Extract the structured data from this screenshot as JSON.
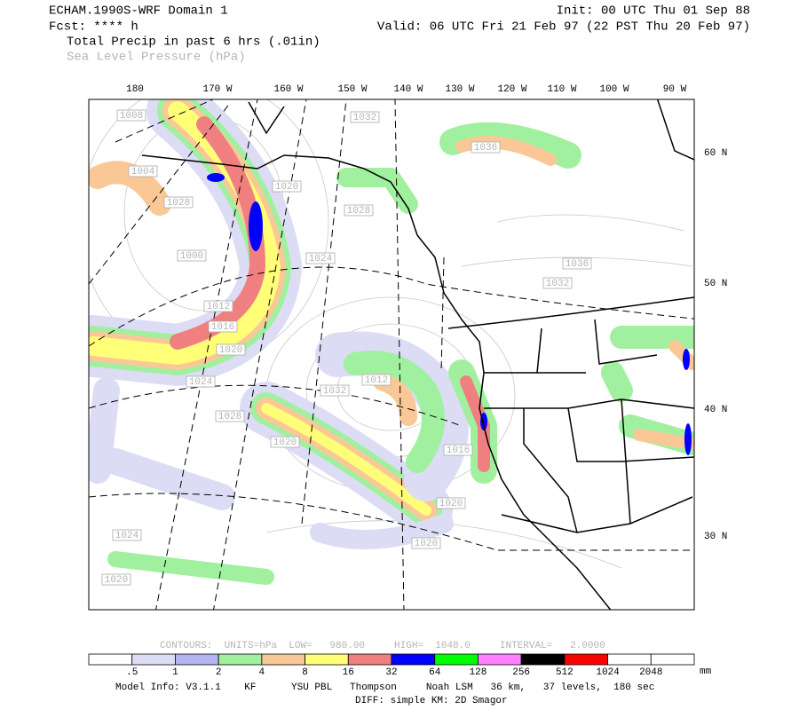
{
  "header": {
    "model": "ECHAM.1990S-WRF Domain 1",
    "forecast": "Fcst: **** h",
    "init": "Init: 00 UTC Thu 01 Sep 88",
    "valid": "Valid: 06 UTC Fri 21 Feb 97 (22 PST Thu 20 Feb 97)",
    "field1": "Total Precip in past 6 hrs (.01in)",
    "field2": "Sea Level Pressure (hPa)"
  },
  "map": {
    "longitude_labels": [
      "180",
      "170 W",
      "160 W",
      "150 W",
      "140 W",
      "130 W",
      "120 W",
      "110 W",
      "100 W",
      "90 W"
    ],
    "latitude_labels": [
      "60 N",
      "50 N",
      "40 N",
      "30 N"
    ],
    "pressure_labels": [
      "1008",
      "1032",
      "1036",
      "1004",
      "1020",
      "1028",
      "1028",
      "1000",
      "1024",
      "1036",
      "1032",
      "1012",
      "1016",
      "1020",
      "1024",
      "1012",
      "1032",
      "1028",
      "1020",
      "1016",
      "1020",
      "1024",
      "1020",
      "1020"
    ]
  },
  "contours": {
    "text": "CONTOURS:  UNITS=hPa  LOW=   980.00     HIGH=  1048.0     INTERVAL=   2.0000"
  },
  "colorbar": {
    "labels": [
      ".5",
      "1",
      "2",
      "4",
      "8",
      "16",
      "32",
      "64",
      "128",
      "256",
      "512",
      "1024",
      "2048"
    ],
    "unit": "mm",
    "colors": [
      "#ffffff",
      "#dcdcf5",
      "#b4b4f0",
      "#a0f0a0",
      "#fac896",
      "#ffff78",
      "#f08080",
      "#0000ff",
      "#00ff00",
      "#ff80ff",
      "#000000",
      "#ff0000",
      "#ffffff",
      "#ffffff"
    ]
  },
  "footer": {
    "model_info": "Model Info: V3.1.1    KF      YSU PBL   Thompson     Noah LSM   36 km,   37 levels,  180 sec",
    "diff": "DIFF: simple KM: 2D Smagor"
  }
}
